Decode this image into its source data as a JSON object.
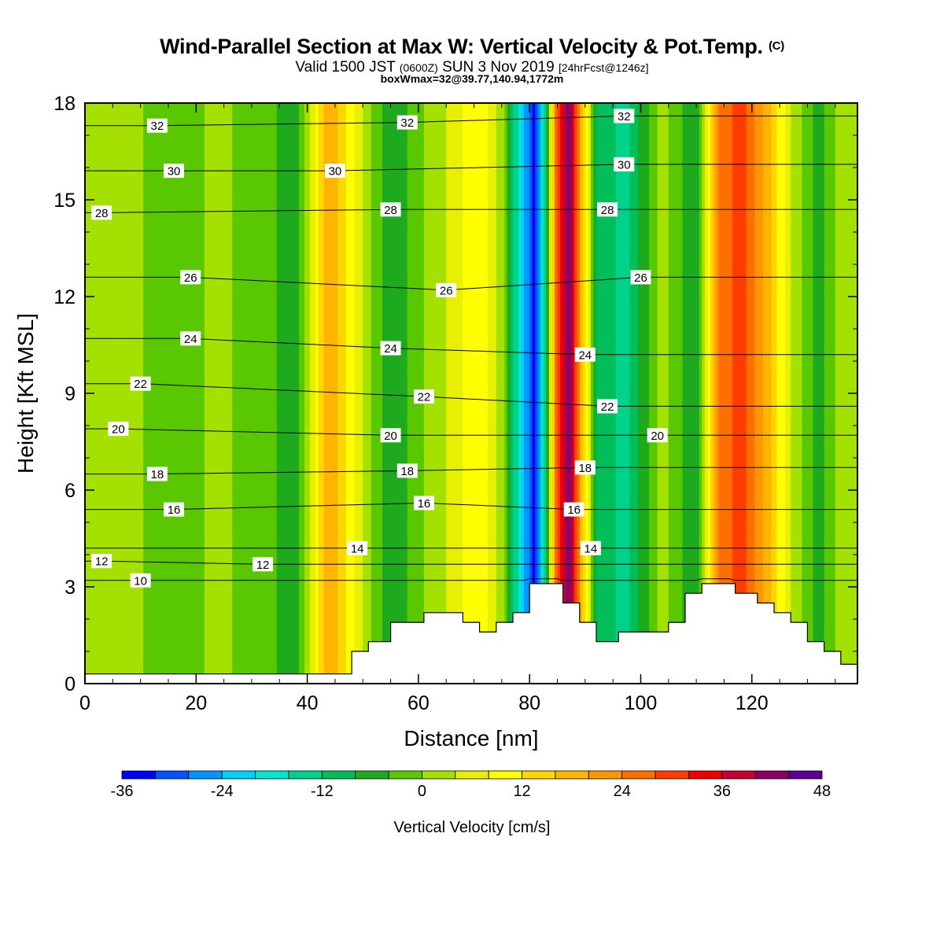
{
  "header": {
    "title": "Wind-Parallel Section at Max W: Vertical Velocity & Pot.Temp.",
    "title_mark": "(C)",
    "valid_prefix": "Valid 1500 JST",
    "valid_z": "(0600Z)",
    "valid_date": "SUN 3 Nov 2019",
    "valid_fcst": "[24hrFcst@1246z]",
    "box_info": "boxWmax=32@39.77,140.94,1772m"
  },
  "chart_data": {
    "type": "heatmap",
    "xlabel": "Distance [nm]",
    "ylabel": "Height [Kft MSL]",
    "xlim": [
      0,
      139
    ],
    "ylim": [
      0,
      18
    ],
    "x_ticks": [
      "0",
      "20",
      "40",
      "60",
      "80",
      "100",
      "120"
    ],
    "y_ticks": [
      "0",
      "3",
      "6",
      "9",
      "12",
      "15",
      "18"
    ],
    "colorbar": {
      "label": "Vertical Velocity [cm/s]",
      "levels": [
        -36,
        -32,
        -28,
        -24,
        -20,
        -16,
        -12,
        -8,
        -4,
        0,
        4,
        8,
        12,
        16,
        20,
        24,
        28,
        32,
        36,
        40,
        44,
        48
      ],
      "colors": [
        "#0000ff",
        "#0055ff",
        "#0096ff",
        "#00d2ff",
        "#00e6d2",
        "#00d28c",
        "#00be5a",
        "#1eaa1e",
        "#5ac800",
        "#a5e100",
        "#e6f000",
        "#ffff00",
        "#ffd700",
        "#ffb400",
        "#ff9600",
        "#ff6e00",
        "#ff3c00",
        "#f00000",
        "#c80032",
        "#8c0064",
        "#5a0096"
      ],
      "tick_labels": [
        "-36",
        "-24",
        "-12",
        "0",
        "12",
        "24",
        "36",
        "48"
      ]
    },
    "vertical_velocity_bands": [
      {
        "x": 0,
        "value": 2
      },
      {
        "x": 8,
        "value": 1
      },
      {
        "x": 16,
        "value": -2
      },
      {
        "x": 24,
        "value": 1
      },
      {
        "x": 33,
        "value": -3
      },
      {
        "x": 38,
        "value": -7
      },
      {
        "x": 44,
        "value": 20
      },
      {
        "x": 50,
        "value": 4
      },
      {
        "x": 55,
        "value": -8
      },
      {
        "x": 61,
        "value": 0
      },
      {
        "x": 66,
        "value": 5
      },
      {
        "x": 71,
        "value": 12
      },
      {
        "x": 75,
        "value": 2
      },
      {
        "x": 79,
        "value": -24
      },
      {
        "x": 81,
        "value": -34
      },
      {
        "x": 83,
        "value": -10
      },
      {
        "x": 85,
        "value": 30
      },
      {
        "x": 87,
        "value": 45
      },
      {
        "x": 89,
        "value": 22
      },
      {
        "x": 92,
        "value": -8
      },
      {
        "x": 97,
        "value": -14
      },
      {
        "x": 104,
        "value": 2
      },
      {
        "x": 110,
        "value": -8
      },
      {
        "x": 114,
        "value": 24
      },
      {
        "x": 118,
        "value": 30
      },
      {
        "x": 123,
        "value": 18
      },
      {
        "x": 127,
        "value": 4
      },
      {
        "x": 132,
        "value": -6
      },
      {
        "x": 136,
        "value": 2
      },
      {
        "x": 139,
        "value": 4
      }
    ],
    "theta_contour_labels": [
      {
        "v": "32",
        "x": 13,
        "y": 17.3
      },
      {
        "v": "32",
        "x": 58,
        "y": 17.4
      },
      {
        "v": "32",
        "x": 97,
        "y": 17.6
      },
      {
        "v": "30",
        "x": 16,
        "y": 15.9
      },
      {
        "v": "30",
        "x": 45,
        "y": 15.9
      },
      {
        "v": "30",
        "x": 97,
        "y": 16.1
      },
      {
        "v": "28",
        "x": 3,
        "y": 14.6
      },
      {
        "v": "28",
        "x": 55,
        "y": 14.7
      },
      {
        "v": "28",
        "x": 94,
        "y": 14.7
      },
      {
        "v": "26",
        "x": 19,
        "y": 12.6
      },
      {
        "v": "26",
        "x": 65,
        "y": 12.2
      },
      {
        "v": "26",
        "x": 100,
        "y": 12.6
      },
      {
        "v": "24",
        "x": 19,
        "y": 10.7
      },
      {
        "v": "24",
        "x": 55,
        "y": 10.4
      },
      {
        "v": "24",
        "x": 90,
        "y": 10.2
      },
      {
        "v": "22",
        "x": 10,
        "y": 9.3
      },
      {
        "v": "22",
        "x": 61,
        "y": 8.9
      },
      {
        "v": "22",
        "x": 94,
        "y": 8.6
      },
      {
        "v": "20",
        "x": 6,
        "y": 7.9
      },
      {
        "v": "20",
        "x": 55,
        "y": 7.7
      },
      {
        "v": "20",
        "x": 103,
        "y": 7.7
      },
      {
        "v": "18",
        "x": 13,
        "y": 6.5
      },
      {
        "v": "18",
        "x": 58,
        "y": 6.6
      },
      {
        "v": "18",
        "x": 90,
        "y": 6.7
      },
      {
        "v": "16",
        "x": 16,
        "y": 5.4
      },
      {
        "v": "16",
        "x": 61,
        "y": 5.6
      },
      {
        "v": "16",
        "x": 88,
        "y": 5.4
      },
      {
        "v": "14",
        "x": 49,
        "y": 4.2
      },
      {
        "v": "14",
        "x": 91,
        "y": 4.2
      },
      {
        "v": "12",
        "x": 3,
        "y": 3.8
      },
      {
        "v": "12",
        "x": 32,
        "y": 3.7
      },
      {
        "v": "10",
        "x": 10,
        "y": 3.2
      }
    ],
    "terrain": [
      [
        0,
        0.3
      ],
      [
        48,
        0.3
      ],
      [
        48,
        1.0
      ],
      [
        51,
        1.0
      ],
      [
        51,
        1.3
      ],
      [
        55,
        1.3
      ],
      [
        55,
        1.9
      ],
      [
        61,
        1.9
      ],
      [
        61,
        2.2
      ],
      [
        68,
        2.2
      ],
      [
        68,
        1.9
      ],
      [
        71,
        1.9
      ],
      [
        71,
        1.6
      ],
      [
        74,
        1.6
      ],
      [
        74,
        1.9
      ],
      [
        77,
        1.9
      ],
      [
        77,
        2.2
      ],
      [
        80,
        2.2
      ],
      [
        80,
        3.1
      ],
      [
        86,
        3.1
      ],
      [
        86,
        2.5
      ],
      [
        89,
        2.5
      ],
      [
        89,
        1.9
      ],
      [
        92,
        1.9
      ],
      [
        92,
        1.3
      ],
      [
        96,
        1.3
      ],
      [
        96,
        1.6
      ],
      [
        105,
        1.6
      ],
      [
        105,
        1.9
      ],
      [
        108,
        1.9
      ],
      [
        108,
        2.8
      ],
      [
        111,
        2.8
      ],
      [
        111,
        3.1
      ],
      [
        117,
        3.1
      ],
      [
        117,
        2.8
      ],
      [
        121,
        2.8
      ],
      [
        121,
        2.5
      ],
      [
        124,
        2.5
      ],
      [
        124,
        2.2
      ],
      [
        127,
        2.2
      ],
      [
        127,
        1.9
      ],
      [
        130,
        1.9
      ],
      [
        130,
        1.3
      ],
      [
        133,
        1.3
      ],
      [
        133,
        1.0
      ],
      [
        136,
        1.0
      ],
      [
        136,
        0.6
      ],
      [
        139,
        0.6
      ]
    ]
  }
}
